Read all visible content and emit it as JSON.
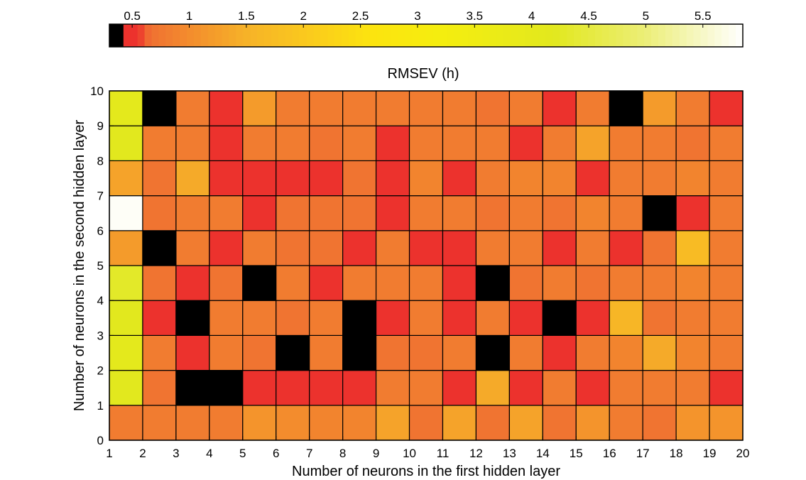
{
  "chart_data": {
    "type": "heatmap",
    "title": "RMSEV (h)",
    "xlabel": "Number of neurons in the first hidden layer",
    "ylabel": "Number of neurons in the second hidden layer",
    "x_ticks": [
      1,
      2,
      3,
      4,
      5,
      6,
      7,
      8,
      9,
      10,
      11,
      12,
      13,
      14,
      15,
      16,
      17,
      18,
      19,
      20
    ],
    "y_ticks": [
      0,
      1,
      2,
      3,
      4,
      5,
      6,
      7,
      8,
      9,
      10
    ],
    "xlim": [
      1,
      20
    ],
    "ylim": [
      0,
      10
    ],
    "colorbar": {
      "label": "RMSEV (h)",
      "ticks": [
        0.5,
        1,
        1.5,
        2,
        2.5,
        3,
        3.5,
        4,
        4.5,
        5,
        5.5
      ],
      "range": [
        0.3,
        5.85
      ],
      "colormap": "hot-like: black, red, orange, yellow, white",
      "placement": "top"
    },
    "grid_values": [
      [
        0.8,
        0.8,
        0.8,
        0.8,
        1.1,
        1.0,
        0.9,
        0.9,
        1.3,
        0.7,
        1.3,
        0.7,
        1.3,
        0.7,
        1.1,
        0.8,
        0.7,
        1.1,
        1.1
      ],
      [
        4.2,
        0.7,
        0.2,
        0.2,
        0.5,
        0.5,
        0.5,
        0.5,
        0.8,
        0.8,
        0.5,
        1.4,
        0.5,
        0.8,
        0.5,
        0.8,
        0.8,
        0.8,
        0.5
      ],
      [
        4.1,
        0.8,
        0.5,
        0.8,
        0.7,
        0.2,
        0.8,
        0.2,
        0.7,
        0.7,
        0.8,
        0.2,
        0.8,
        0.5,
        0.8,
        0.9,
        1.4,
        0.9,
        0.8
      ],
      [
        4.2,
        0.5,
        0.2,
        0.8,
        0.8,
        0.7,
        0.8,
        0.2,
        0.5,
        0.8,
        0.5,
        0.8,
        0.5,
        0.2,
        0.5,
        1.6,
        0.7,
        0.8,
        0.8
      ],
      [
        4.3,
        0.7,
        0.5,
        0.7,
        0.2,
        0.8,
        0.5,
        0.8,
        0.8,
        0.8,
        0.5,
        0.2,
        0.7,
        0.8,
        0.7,
        0.8,
        0.8,
        0.9,
        0.8
      ],
      [
        1.2,
        0.2,
        0.8,
        0.5,
        0.8,
        0.7,
        0.7,
        0.5,
        0.8,
        0.5,
        0.5,
        0.8,
        0.8,
        0.5,
        0.8,
        0.5,
        0.7,
        1.7,
        0.8
      ],
      [
        5.8,
        0.7,
        0.8,
        0.8,
        0.5,
        0.7,
        0.7,
        0.7,
        0.5,
        0.8,
        0.8,
        0.7,
        0.8,
        0.7,
        0.9,
        0.8,
        0.2,
        0.5,
        0.8
      ],
      [
        1.3,
        0.7,
        1.4,
        0.5,
        0.5,
        0.5,
        0.5,
        0.7,
        0.5,
        0.9,
        0.5,
        0.8,
        0.9,
        0.9,
        0.5,
        0.8,
        0.8,
        0.9,
        0.8
      ],
      [
        4.2,
        0.8,
        0.8,
        0.5,
        0.8,
        0.8,
        0.7,
        0.8,
        0.5,
        0.8,
        0.8,
        0.8,
        0.5,
        0.8,
        1.3,
        0.8,
        0.8,
        0.7,
        0.8
      ],
      [
        4.1,
        0.2,
        0.8,
        0.5,
        1.2,
        0.8,
        0.8,
        0.8,
        0.8,
        0.8,
        0.8,
        0.7,
        0.8,
        0.5,
        0.8,
        0.2,
        1.2,
        0.8,
        0.5
      ]
    ]
  }
}
